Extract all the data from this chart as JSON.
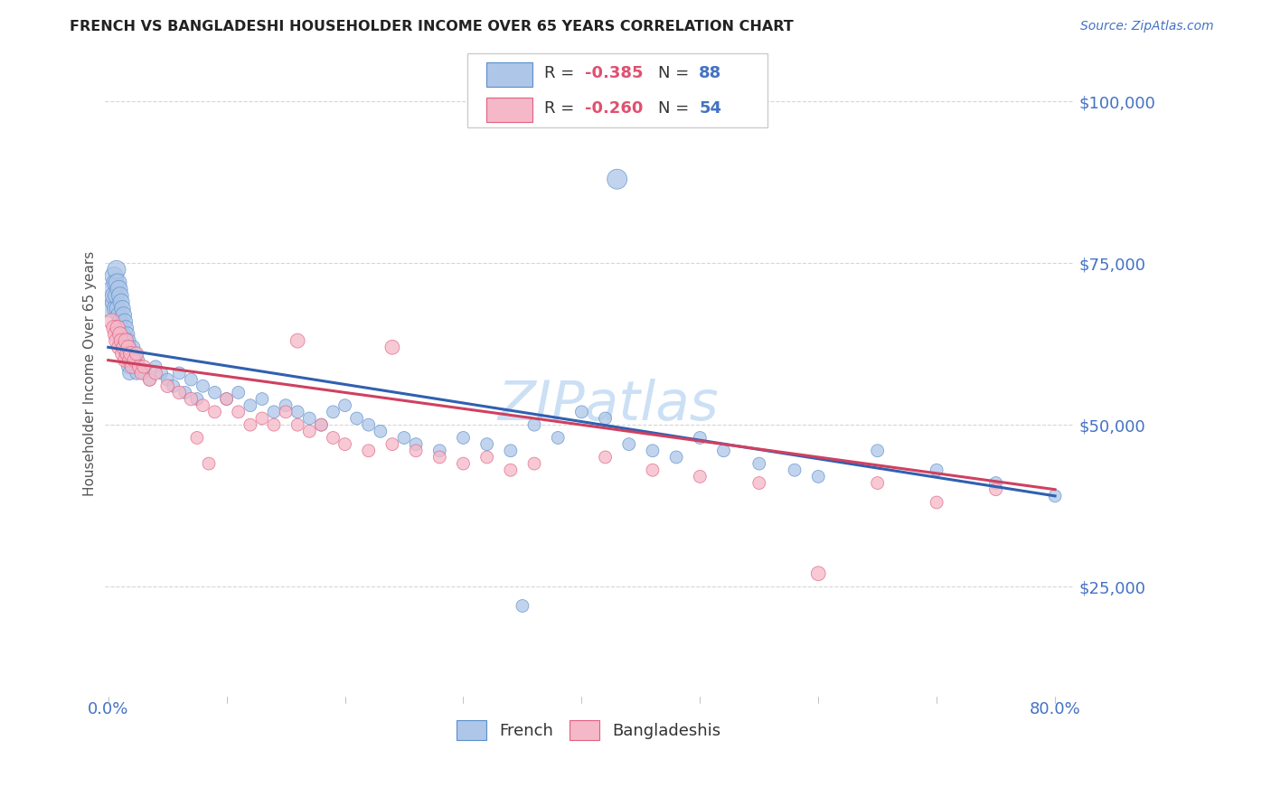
{
  "title": "FRENCH VS BANGLADESHI HOUSEHOLDER INCOME OVER 65 YEARS CORRELATION CHART",
  "source": "Source: ZipAtlas.com",
  "ylabel": "Householder Income Over 65 years",
  "ytick_labels": [
    "$25,000",
    "$50,000",
    "$75,000",
    "$100,000"
  ],
  "ytick_values": [
    25000,
    50000,
    75000,
    100000
  ],
  "ylim": [
    8000,
    108000
  ],
  "xlim": [
    -0.003,
    0.815
  ],
  "french_color": "#aec6e8",
  "french_edge_color": "#5b8ecb",
  "bangla_color": "#f5b8c8",
  "bangla_edge_color": "#e06080",
  "french_line_color": "#3060b0",
  "bangla_line_color": "#d04060",
  "watermark_color": "#cce0f5",
  "title_color": "#222222",
  "source_color": "#4472c4",
  "ytick_color": "#4472c4",
  "xtick_color": "#4472c4",
  "grid_color": "#cccccc",
  "legend_R_color": "#e05070",
  "legend_N_color": "#4472c4",
  "background_color": "#ffffff",
  "french_x": [
    0.002,
    0.003,
    0.004,
    0.005,
    0.005,
    0.006,
    0.006,
    0.007,
    0.007,
    0.008,
    0.008,
    0.009,
    0.009,
    0.01,
    0.01,
    0.011,
    0.011,
    0.012,
    0.012,
    0.013,
    0.013,
    0.014,
    0.014,
    0.015,
    0.015,
    0.016,
    0.016,
    0.017,
    0.017,
    0.018,
    0.018,
    0.019,
    0.02,
    0.021,
    0.022,
    0.023,
    0.024,
    0.025,
    0.03,
    0.035,
    0.04,
    0.045,
    0.05,
    0.055,
    0.06,
    0.065,
    0.07,
    0.075,
    0.08,
    0.09,
    0.1,
    0.11,
    0.12,
    0.13,
    0.14,
    0.15,
    0.16,
    0.17,
    0.18,
    0.19,
    0.2,
    0.21,
    0.22,
    0.23,
    0.25,
    0.26,
    0.28,
    0.3,
    0.32,
    0.34,
    0.36,
    0.38,
    0.4,
    0.42,
    0.44,
    0.46,
    0.48,
    0.5,
    0.52,
    0.55,
    0.58,
    0.6,
    0.65,
    0.7,
    0.75,
    0.8,
    0.43,
    0.35
  ],
  "french_y": [
    68000,
    71000,
    69000,
    73000,
    70000,
    72000,
    68000,
    74000,
    70000,
    72000,
    68000,
    71000,
    67000,
    70000,
    66000,
    69000,
    65000,
    68000,
    64000,
    67000,
    63000,
    66000,
    62000,
    65000,
    61000,
    64000,
    60000,
    63000,
    59000,
    62000,
    58000,
    61000,
    60000,
    62000,
    59000,
    61000,
    58000,
    60000,
    58000,
    57000,
    59000,
    58000,
    57000,
    56000,
    58000,
    55000,
    57000,
    54000,
    56000,
    55000,
    54000,
    55000,
    53000,
    54000,
    52000,
    53000,
    52000,
    51000,
    50000,
    52000,
    53000,
    51000,
    50000,
    49000,
    48000,
    47000,
    46000,
    48000,
    47000,
    46000,
    50000,
    48000,
    52000,
    51000,
    47000,
    46000,
    45000,
    48000,
    46000,
    44000,
    43000,
    42000,
    46000,
    43000,
    41000,
    39000,
    88000,
    22000
  ],
  "french_sizes": [
    200,
    180,
    160,
    220,
    200,
    190,
    170,
    210,
    180,
    200,
    170,
    190,
    160,
    180,
    160,
    170,
    150,
    160,
    150,
    160,
    140,
    150,
    130,
    140,
    130,
    140,
    130,
    140,
    120,
    130,
    120,
    130,
    120,
    120,
    110,
    110,
    110,
    110,
    100,
    100,
    100,
    100,
    100,
    100,
    100,
    100,
    100,
    100,
    100,
    100,
    100,
    100,
    100,
    100,
    100,
    100,
    100,
    100,
    100,
    100,
    100,
    100,
    100,
    100,
    100,
    100,
    100,
    100,
    100,
    100,
    100,
    100,
    100,
    100,
    100,
    100,
    100,
    100,
    100,
    100,
    100,
    100,
    100,
    100,
    100,
    100,
    250,
    100
  ],
  "bangla_x": [
    0.003,
    0.005,
    0.006,
    0.007,
    0.008,
    0.009,
    0.01,
    0.011,
    0.012,
    0.013,
    0.014,
    0.015,
    0.016,
    0.017,
    0.018,
    0.019,
    0.02,
    0.022,
    0.024,
    0.026,
    0.028,
    0.03,
    0.035,
    0.04,
    0.05,
    0.06,
    0.07,
    0.08,
    0.09,
    0.1,
    0.11,
    0.12,
    0.13,
    0.14,
    0.15,
    0.16,
    0.17,
    0.18,
    0.19,
    0.2,
    0.22,
    0.24,
    0.26,
    0.28,
    0.3,
    0.32,
    0.34,
    0.36,
    0.42,
    0.46,
    0.5,
    0.55,
    0.65,
    0.75
  ],
  "bangla_y": [
    66000,
    65000,
    64000,
    63000,
    65000,
    62000,
    64000,
    63000,
    61000,
    62000,
    60000,
    63000,
    61000,
    62000,
    60000,
    61000,
    59000,
    60000,
    61000,
    59000,
    58000,
    59000,
    57000,
    58000,
    56000,
    55000,
    54000,
    53000,
    52000,
    54000,
    52000,
    50000,
    51000,
    50000,
    52000,
    50000,
    49000,
    50000,
    48000,
    47000,
    46000,
    47000,
    46000,
    45000,
    44000,
    45000,
    43000,
    44000,
    45000,
    43000,
    42000,
    41000,
    41000,
    40000
  ],
  "bangla_sizes": [
    160,
    150,
    140,
    140,
    140,
    130,
    140,
    130,
    130,
    130,
    120,
    140,
    130,
    130,
    120,
    130,
    120,
    120,
    120,
    110,
    110,
    110,
    110,
    110,
    110,
    110,
    110,
    100,
    100,
    100,
    100,
    100,
    100,
    100,
    100,
    100,
    100,
    100,
    100,
    100,
    100,
    100,
    100,
    100,
    100,
    100,
    100,
    100,
    100,
    100,
    100,
    100,
    100,
    100
  ],
  "extra_bangla_x": [
    0.075,
    0.085,
    0.16,
    0.24,
    0.6,
    0.7
  ],
  "extra_bangla_y": [
    48000,
    44000,
    63000,
    62000,
    27000,
    38000
  ],
  "extra_bangla_sizes": [
    100,
    100,
    130,
    130,
    130,
    100
  ]
}
